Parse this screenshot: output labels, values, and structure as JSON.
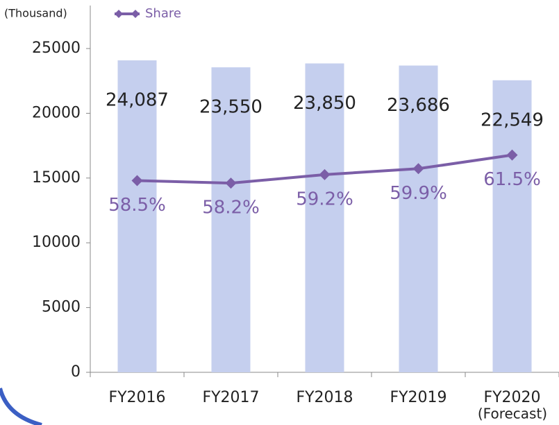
{
  "chart_data": {
    "type": "bar_line",
    "y_label": "(Thousand)",
    "categories": [
      "FY2016",
      "FY2017",
      "FY2018",
      "FY2019",
      "FY2020"
    ],
    "annotations": [
      "(Forecast)"
    ],
    "ylim": [
      0,
      25000
    ],
    "yticks": [
      0,
      5000,
      10000,
      15000,
      20000,
      25000
    ],
    "y2lim": [
      36,
      74
    ],
    "legend": "top",
    "series": [
      {
        "type": "bar",
        "color": "#c5cfee",
        "values": [
          24087,
          23550,
          23850,
          23686,
          22549
        ],
        "value_labels": [
          "24,087",
          "23,550",
          "23,850",
          "23,686",
          "22,549"
        ]
      },
      {
        "type": "line",
        "name": "Share",
        "axis": "y2",
        "color": "#7b5ea7",
        "values": [
          58.5,
          58.2,
          59.2,
          59.9,
          61.5
        ],
        "value_labels": [
          "58.5%",
          "58.2%",
          "59.2%",
          "59.9%",
          "61.5%"
        ]
      }
    ]
  }
}
